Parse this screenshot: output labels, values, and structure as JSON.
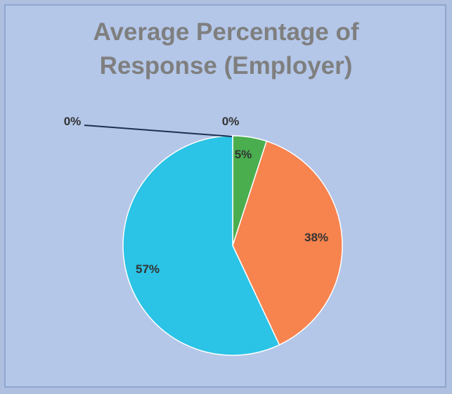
{
  "chart_data": {
    "type": "pie",
    "title_lines": [
      "Average Percentage of",
      "Response (Employer)"
    ],
    "slices": [
      {
        "label": "0%",
        "value": 0,
        "color": "#d9d9d9"
      },
      {
        "label": "5%",
        "value": 5,
        "color": "#4aae4f"
      },
      {
        "label": "38%",
        "value": 38,
        "color": "#f7834e"
      },
      {
        "label": "57%",
        "value": 57,
        "color": "#2bc3e6"
      },
      {
        "label": "0%",
        "value": 0,
        "color": "#d9d9d9"
      }
    ],
    "legend": "none"
  }
}
